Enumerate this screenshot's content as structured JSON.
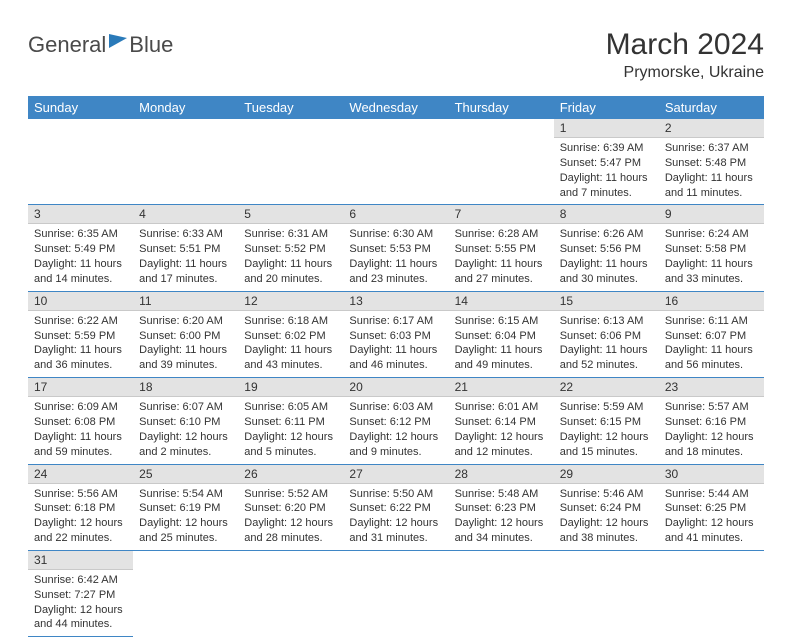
{
  "logo": {
    "word1": "General",
    "word2": "Blue"
  },
  "title": "March 2024",
  "location": "Prymorske, Ukraine",
  "accent_color": "#3f86c5",
  "gray_bar_color": "#e3e3e3",
  "text_color": "#333333",
  "day_headers": [
    "Sunday",
    "Monday",
    "Tuesday",
    "Wednesday",
    "Thursday",
    "Friday",
    "Saturday"
  ],
  "weeks": [
    [
      null,
      null,
      null,
      null,
      null,
      {
        "n": "1",
        "sunrise": "Sunrise: 6:39 AM",
        "sunset": "Sunset: 5:47 PM",
        "dl1": "Daylight: 11 hours",
        "dl2": "and 7 minutes."
      },
      {
        "n": "2",
        "sunrise": "Sunrise: 6:37 AM",
        "sunset": "Sunset: 5:48 PM",
        "dl1": "Daylight: 11 hours",
        "dl2": "and 11 minutes."
      }
    ],
    [
      {
        "n": "3",
        "sunrise": "Sunrise: 6:35 AM",
        "sunset": "Sunset: 5:49 PM",
        "dl1": "Daylight: 11 hours",
        "dl2": "and 14 minutes."
      },
      {
        "n": "4",
        "sunrise": "Sunrise: 6:33 AM",
        "sunset": "Sunset: 5:51 PM",
        "dl1": "Daylight: 11 hours",
        "dl2": "and 17 minutes."
      },
      {
        "n": "5",
        "sunrise": "Sunrise: 6:31 AM",
        "sunset": "Sunset: 5:52 PM",
        "dl1": "Daylight: 11 hours",
        "dl2": "and 20 minutes."
      },
      {
        "n": "6",
        "sunrise": "Sunrise: 6:30 AM",
        "sunset": "Sunset: 5:53 PM",
        "dl1": "Daylight: 11 hours",
        "dl2": "and 23 minutes."
      },
      {
        "n": "7",
        "sunrise": "Sunrise: 6:28 AM",
        "sunset": "Sunset: 5:55 PM",
        "dl1": "Daylight: 11 hours",
        "dl2": "and 27 minutes."
      },
      {
        "n": "8",
        "sunrise": "Sunrise: 6:26 AM",
        "sunset": "Sunset: 5:56 PM",
        "dl1": "Daylight: 11 hours",
        "dl2": "and 30 minutes."
      },
      {
        "n": "9",
        "sunrise": "Sunrise: 6:24 AM",
        "sunset": "Sunset: 5:58 PM",
        "dl1": "Daylight: 11 hours",
        "dl2": "and 33 minutes."
      }
    ],
    [
      {
        "n": "10",
        "sunrise": "Sunrise: 6:22 AM",
        "sunset": "Sunset: 5:59 PM",
        "dl1": "Daylight: 11 hours",
        "dl2": "and 36 minutes."
      },
      {
        "n": "11",
        "sunrise": "Sunrise: 6:20 AM",
        "sunset": "Sunset: 6:00 PM",
        "dl1": "Daylight: 11 hours",
        "dl2": "and 39 minutes."
      },
      {
        "n": "12",
        "sunrise": "Sunrise: 6:18 AM",
        "sunset": "Sunset: 6:02 PM",
        "dl1": "Daylight: 11 hours",
        "dl2": "and 43 minutes."
      },
      {
        "n": "13",
        "sunrise": "Sunrise: 6:17 AM",
        "sunset": "Sunset: 6:03 PM",
        "dl1": "Daylight: 11 hours",
        "dl2": "and 46 minutes."
      },
      {
        "n": "14",
        "sunrise": "Sunrise: 6:15 AM",
        "sunset": "Sunset: 6:04 PM",
        "dl1": "Daylight: 11 hours",
        "dl2": "and 49 minutes."
      },
      {
        "n": "15",
        "sunrise": "Sunrise: 6:13 AM",
        "sunset": "Sunset: 6:06 PM",
        "dl1": "Daylight: 11 hours",
        "dl2": "and 52 minutes."
      },
      {
        "n": "16",
        "sunrise": "Sunrise: 6:11 AM",
        "sunset": "Sunset: 6:07 PM",
        "dl1": "Daylight: 11 hours",
        "dl2": "and 56 minutes."
      }
    ],
    [
      {
        "n": "17",
        "sunrise": "Sunrise: 6:09 AM",
        "sunset": "Sunset: 6:08 PM",
        "dl1": "Daylight: 11 hours",
        "dl2": "and 59 minutes."
      },
      {
        "n": "18",
        "sunrise": "Sunrise: 6:07 AM",
        "sunset": "Sunset: 6:10 PM",
        "dl1": "Daylight: 12 hours",
        "dl2": "and 2 minutes."
      },
      {
        "n": "19",
        "sunrise": "Sunrise: 6:05 AM",
        "sunset": "Sunset: 6:11 PM",
        "dl1": "Daylight: 12 hours",
        "dl2": "and 5 minutes."
      },
      {
        "n": "20",
        "sunrise": "Sunrise: 6:03 AM",
        "sunset": "Sunset: 6:12 PM",
        "dl1": "Daylight: 12 hours",
        "dl2": "and 9 minutes."
      },
      {
        "n": "21",
        "sunrise": "Sunrise: 6:01 AM",
        "sunset": "Sunset: 6:14 PM",
        "dl1": "Daylight: 12 hours",
        "dl2": "and 12 minutes."
      },
      {
        "n": "22",
        "sunrise": "Sunrise: 5:59 AM",
        "sunset": "Sunset: 6:15 PM",
        "dl1": "Daylight: 12 hours",
        "dl2": "and 15 minutes."
      },
      {
        "n": "23",
        "sunrise": "Sunrise: 5:57 AM",
        "sunset": "Sunset: 6:16 PM",
        "dl1": "Daylight: 12 hours",
        "dl2": "and 18 minutes."
      }
    ],
    [
      {
        "n": "24",
        "sunrise": "Sunrise: 5:56 AM",
        "sunset": "Sunset: 6:18 PM",
        "dl1": "Daylight: 12 hours",
        "dl2": "and 22 minutes."
      },
      {
        "n": "25",
        "sunrise": "Sunrise: 5:54 AM",
        "sunset": "Sunset: 6:19 PM",
        "dl1": "Daylight: 12 hours",
        "dl2": "and 25 minutes."
      },
      {
        "n": "26",
        "sunrise": "Sunrise: 5:52 AM",
        "sunset": "Sunset: 6:20 PM",
        "dl1": "Daylight: 12 hours",
        "dl2": "and 28 minutes."
      },
      {
        "n": "27",
        "sunrise": "Sunrise: 5:50 AM",
        "sunset": "Sunset: 6:22 PM",
        "dl1": "Daylight: 12 hours",
        "dl2": "and 31 minutes."
      },
      {
        "n": "28",
        "sunrise": "Sunrise: 5:48 AM",
        "sunset": "Sunset: 6:23 PM",
        "dl1": "Daylight: 12 hours",
        "dl2": "and 34 minutes."
      },
      {
        "n": "29",
        "sunrise": "Sunrise: 5:46 AM",
        "sunset": "Sunset: 6:24 PM",
        "dl1": "Daylight: 12 hours",
        "dl2": "and 38 minutes."
      },
      {
        "n": "30",
        "sunrise": "Sunrise: 5:44 AM",
        "sunset": "Sunset: 6:25 PM",
        "dl1": "Daylight: 12 hours",
        "dl2": "and 41 minutes."
      }
    ],
    [
      {
        "n": "31",
        "sunrise": "Sunrise: 6:42 AM",
        "sunset": "Sunset: 7:27 PM",
        "dl1": "Daylight: 12 hours",
        "dl2": "and 44 minutes."
      },
      null,
      null,
      null,
      null,
      null,
      null
    ]
  ]
}
